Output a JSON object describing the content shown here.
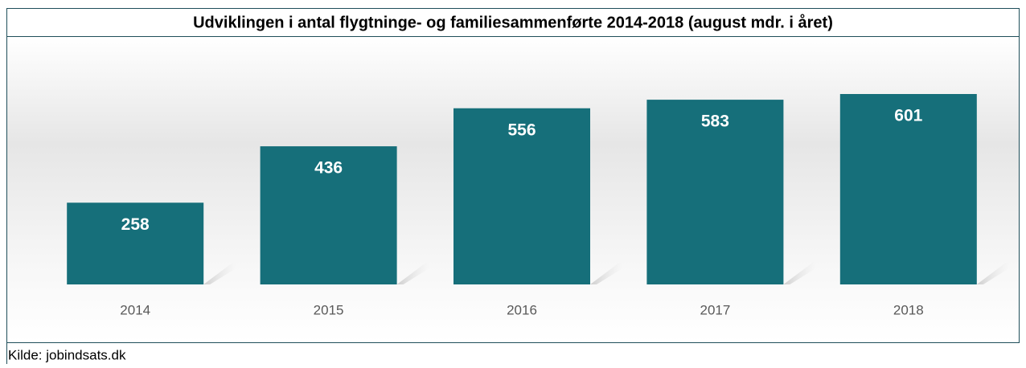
{
  "chart_data": {
    "type": "bar",
    "title": "Udviklingen i antal flygtninge- og familiesammenførte 2014-2018 (august mdr. i året)",
    "categories": [
      "2014",
      "2015",
      "2016",
      "2017",
      "2018"
    ],
    "values": [
      258,
      436,
      556,
      583,
      601
    ],
    "color": "#166f7a",
    "source": "Kilde: jobindsats.dk"
  }
}
